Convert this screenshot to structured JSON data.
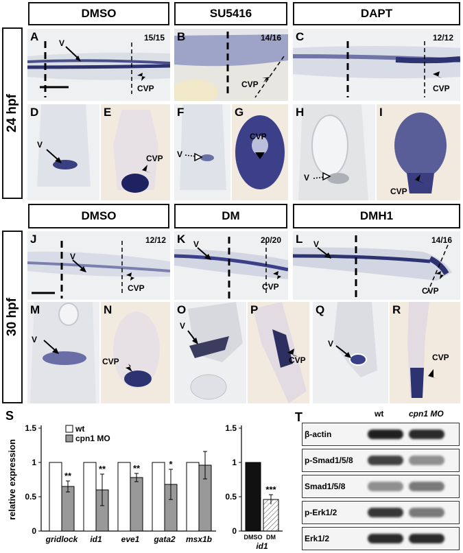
{
  "headers_top": [
    "DMSO",
    "SU5416",
    "DAPT"
  ],
  "headers_mid": [
    "DMSO",
    "DM",
    "DMH1"
  ],
  "side_labels": [
    "24 hpf",
    "30 hpf"
  ],
  "panel_letters_24": [
    "A",
    "B",
    "C",
    "D",
    "E",
    "F",
    "G",
    "H",
    "I"
  ],
  "panel_letters_30": [
    "J",
    "K",
    "L",
    "M",
    "N",
    "O",
    "P",
    "Q",
    "R"
  ],
  "counts_24": [
    "15/15",
    "14/16",
    "12/12"
  ],
  "counts_30": [
    "12/12",
    "20/20",
    "14/16"
  ],
  "annotations": {
    "v": "V",
    "cvp": "CVP"
  },
  "panel_S_letter": "S",
  "panel_T_letter": "T",
  "chart_data": [
    {
      "type": "bar",
      "ylabel": "relative expression",
      "ylim": [
        0,
        1.5
      ],
      "yticks": [
        "0",
        "0.5",
        "1",
        "1.5"
      ],
      "legend": [
        "wt",
        "cpn1 MO"
      ],
      "categories": [
        "gridlock",
        "id1",
        "eve1",
        "gata2",
        "msx1b"
      ],
      "series": [
        {
          "name": "wt",
          "values": [
            1.0,
            1.0,
            1.0,
            1.0,
            1.0
          ],
          "color": "#ffffff"
        },
        {
          "name": "cpn1 MO",
          "values": [
            0.65,
            0.6,
            0.78,
            0.68,
            0.96
          ],
          "color": "#999999",
          "errors": [
            0.08,
            0.23,
            0.06,
            0.22,
            0.2
          ]
        }
      ],
      "significance": [
        "**",
        "**",
        "**",
        "*",
        ""
      ]
    },
    {
      "type": "bar",
      "ylim": [
        0,
        1.5
      ],
      "yticks": [
        "0",
        "0.5",
        "1",
        "1.5"
      ],
      "categories": [
        "DMSO",
        "DM"
      ],
      "values": [
        1.0,
        0.46
      ],
      "errors": [
        0,
        0.07
      ],
      "colors": [
        "#111111",
        "hatched"
      ],
      "xlabel": "id1",
      "significance": [
        "",
        "***"
      ]
    }
  ],
  "blot": {
    "columns": [
      "wt",
      "cpn1 MO"
    ],
    "rows": [
      "β-actin",
      "p-Smad1/5/8",
      "Smad1/5/8",
      "p-Erk1/2",
      "Erk1/2"
    ]
  }
}
